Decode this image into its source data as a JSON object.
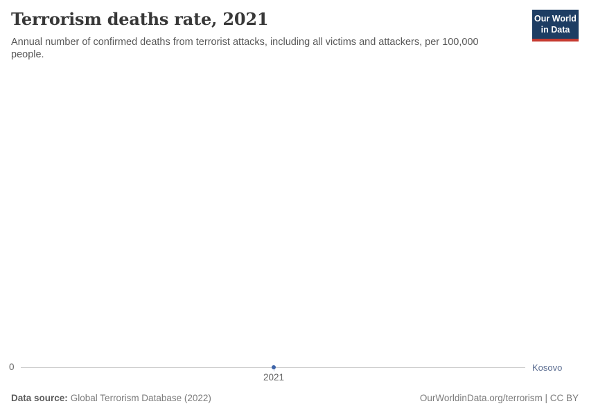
{
  "header": {
    "title": "Terrorism deaths rate, 2021",
    "subtitle": "Annual number of confirmed deaths from terrorist attacks, including all victims and attackers, per 100,000 people."
  },
  "logo": {
    "line1": "Our World",
    "line2": "in Data",
    "bg_color": "#1d3d63",
    "accent_color": "#c5392f"
  },
  "chart_data": {
    "type": "line",
    "title": "Terrorism deaths rate, 2021",
    "x": [
      2021
    ],
    "series": [
      {
        "name": "Kosovo",
        "values": [
          0
        ],
        "color": "#3e64a9"
      }
    ],
    "xlabel": "",
    "ylabel": "",
    "x_ticks": [
      "2021"
    ],
    "y_ticks": [
      "0"
    ],
    "ylim": [
      0,
      0
    ],
    "grid": false,
    "legend_position": "right-inline",
    "axis_line_color": "#cccccc",
    "entity_label_color": "#5b6d91"
  },
  "footer": {
    "source_label": "Data source:",
    "source_value": "Global Terrorism Database (2022)",
    "credit": "OurWorldinData.org/terrorism | CC BY"
  }
}
